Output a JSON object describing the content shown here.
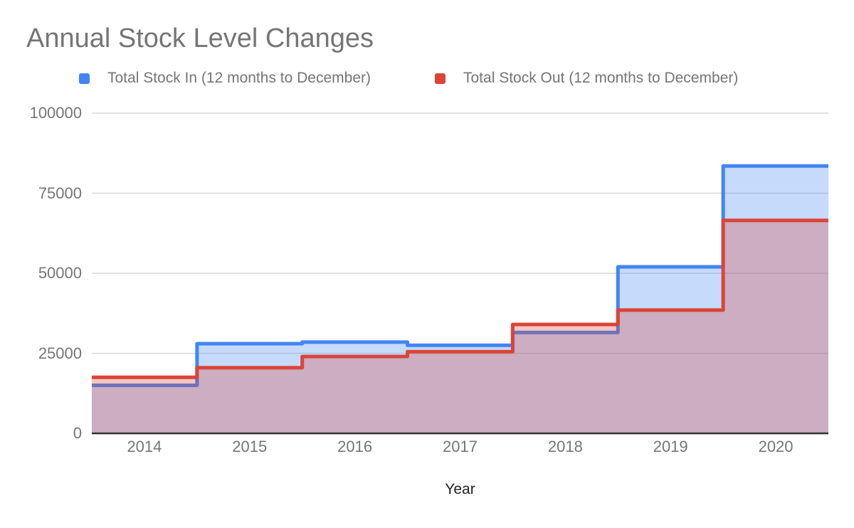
{
  "chart_data": {
    "type": "area",
    "variant": "stepped-area",
    "title": "Annual Stock Level Changes",
    "xlabel": "Year",
    "ylabel": "",
    "categories": [
      "2014",
      "2015",
      "2016",
      "2017",
      "2018",
      "2019",
      "2020"
    ],
    "series": [
      {
        "name": "Total Stock In (12 months to December)",
        "color": "#4285f4",
        "fill_opacity": 0.3,
        "values": [
          15000,
          28000,
          28500,
          27500,
          31500,
          52000,
          83500
        ]
      },
      {
        "name": "Total Stock Out (12 months to December)",
        "color": "#db4437",
        "fill_opacity": 0.3,
        "values": [
          17500,
          20500,
          24000,
          25500,
          34000,
          38500,
          66500
        ]
      }
    ],
    "ylim": [
      0,
      100000
    ],
    "yticks": [
      0,
      25000,
      50000,
      75000,
      100000
    ],
    "grid": true,
    "gridline_color": "#d9d9d9",
    "axis_line_color": "#333333",
    "legend_position": "top"
  }
}
